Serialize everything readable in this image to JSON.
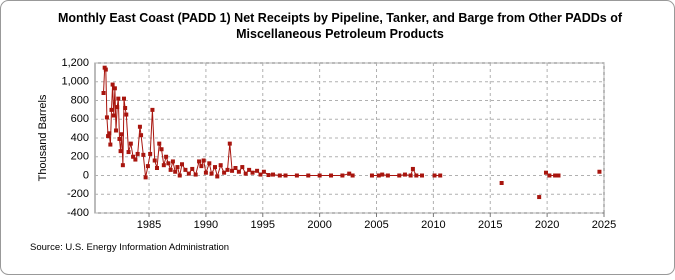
{
  "chart_data": {
    "type": "line",
    "title": "Monthly East Coast (PADD 1) Net Receipts by Pipeline, Tanker, and Barge from Other PADDs of",
    "subtitle": "Miscellaneous Petroleum Products",
    "y_label": "Thousand Barrels",
    "source": "Source: U.S. Energy Information Administration",
    "xlim": [
      1980.25,
      2025
    ],
    "ylim": [
      -400,
      1200
    ],
    "xticks": [
      1985,
      1990,
      1995,
      2000,
      2005,
      2010,
      2015,
      2020,
      2025
    ],
    "yticks": [
      -400,
      -200,
      0,
      200,
      400,
      600,
      800,
      {
        "value": 1000,
        "label": "1,000"
      },
      {
        "value": 1200,
        "label": "1,200"
      }
    ],
    "grid": true,
    "x": [
      1981.0,
      1981.1,
      1981.2,
      1981.3,
      1981.4,
      1981.5,
      1981.6,
      1981.7,
      1981.8,
      1981.9,
      1982.0,
      1982.1,
      1982.2,
      1982.3,
      1982.4,
      1982.5,
      1982.6,
      1982.7,
      1982.8,
      1982.9,
      1983.0,
      1983.2,
      1983.4,
      1983.6,
      1983.8,
      1984.0,
      1984.2,
      1984.3,
      1984.5,
      1984.7,
      1984.9,
      1985.1,
      1985.3,
      1985.5,
      1985.7,
      1985.9,
      1986.1,
      1986.3,
      1986.5,
      1986.7,
      1986.9,
      1987.1,
      1987.3,
      1987.5,
      1987.7,
      1987.9,
      1988.2,
      1988.5,
      1988.8,
      1989.1,
      1989.4,
      1989.6,
      1989.8,
      1990.0,
      1990.3,
      1990.5,
      1990.8,
      1991.0,
      1991.3,
      1991.6,
      1991.9,
      1992.1,
      1992.3,
      1992.6,
      1992.9,
      1993.2,
      1993.5,
      1993.8,
      1994.1,
      1994.5,
      1994.8,
      1995.1,
      1995.5,
      1995.9,
      1996.5,
      1997.0,
      1998.0,
      1999.0,
      2000.0,
      2001.0,
      2002.0,
      2002.6,
      2002.9,
      2003.8,
      2004.6,
      2005.2,
      2005.5,
      2006.0,
      2007.0,
      2007.5,
      2008.0,
      2008.2,
      2008.5,
      2009.0,
      2009.5,
      2010.1,
      2010.6,
      2013.0,
      2016.0,
      2017.5,
      2019.3,
      2019.6,
      2019.9,
      2020.2,
      2020.7,
      2021.0,
      2023.0,
      2024.6
    ],
    "series": [
      {
        "name": "Net Receipts",
        "color": "#a8150e",
        "values": [
          880,
          1150,
          1130,
          620,
          420,
          450,
          330,
          700,
          970,
          640,
          930,
          480,
          730,
          820,
          390,
          260,
          440,
          110,
          820,
          720,
          650,
          250,
          340,
          200,
          170,
          230,
          520,
          430,
          220,
          -20,
          100,
          230,
          700,
          160,
          80,
          340,
          280,
          110,
          200,
          130,
          60,
          150,
          40,
          90,
          0,
          120,
          60,
          20,
          70,
          10,
          150,
          100,
          160,
          30,
          130,
          20,
          90,
          -10,
          110,
          30,
          60,
          340,
          50,
          80,
          40,
          90,
          20,
          60,
          30,
          50,
          10,
          40,
          5,
          10,
          0,
          0,
          0,
          0,
          0,
          0,
          0,
          20,
          0,
          null,
          0,
          0,
          10,
          0,
          0,
          10,
          0,
          70,
          0,
          0,
          null,
          0,
          0,
          null,
          -80,
          null,
          -230,
          null,
          30,
          0,
          0,
          0,
          null,
          40
        ]
      }
    ]
  }
}
